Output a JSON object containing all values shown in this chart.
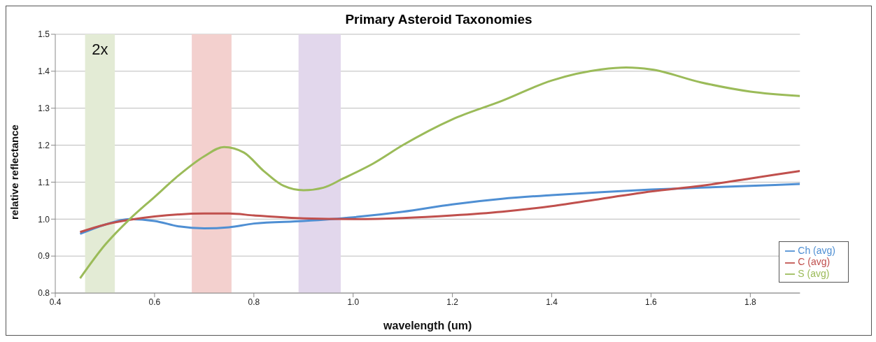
{
  "chart_data": {
    "type": "line",
    "title": "Primary Asteroid Taxonomies",
    "xlabel": "wavelength (um)",
    "ylabel": "relative reflectance",
    "xlim": [
      0.4,
      1.9
    ],
    "xticks": [
      {
        "value": 0.4,
        "label": "0.4"
      },
      {
        "value": 0.6,
        "label": "0.6"
      },
      {
        "value": 0.8,
        "label": "0.8"
      },
      {
        "value": 1.0,
        "label": "1.0"
      },
      {
        "value": 1.2,
        "label": "1.2"
      },
      {
        "value": 1.4,
        "label": "1.4"
      },
      {
        "value": 1.6,
        "label": "1.6"
      },
      {
        "value": 1.8,
        "label": "1.8"
      }
    ],
    "ylim": [
      0.8,
      1.5
    ],
    "yticks": [
      {
        "value": 0.8,
        "label": "0.8"
      },
      {
        "value": 0.9,
        "label": "0.9"
      },
      {
        "value": 1.0,
        "label": "1.0"
      },
      {
        "value": 1.1,
        "label": "1.1"
      },
      {
        "value": 1.2,
        "label": "1.2"
      },
      {
        "value": 1.3,
        "label": "1.3"
      },
      {
        "value": 1.4,
        "label": "1.4"
      },
      {
        "value": 1.5,
        "label": "1.5"
      }
    ],
    "grid": "y",
    "legend": "bottom right",
    "marker": "none",
    "line_style": "solid",
    "bands": [
      {
        "axis": "x",
        "from": 0.46,
        "to": 0.52,
        "label": "2x",
        "color": "#e3ebd5"
      },
      {
        "axis": "x",
        "from": 0.675,
        "to": 0.755,
        "color": "#f3d0ce"
      },
      {
        "axis": "x",
        "from": 0.89,
        "to": 0.975,
        "color": "#e2d7ec"
      }
    ],
    "series": [
      {
        "name": "Ch (avg)",
        "color": "#4f8fd3",
        "x": [
          0.45,
          0.5,
          0.55,
          0.6,
          0.65,
          0.7,
          0.75,
          0.8,
          0.9,
          1.0,
          1.1,
          1.2,
          1.3,
          1.4,
          1.5,
          1.6,
          1.7,
          1.8,
          1.9
        ],
        "values": [
          0.96,
          0.985,
          1.0,
          0.995,
          0.98,
          0.975,
          0.978,
          0.988,
          0.995,
          1.005,
          1.02,
          1.04,
          1.055,
          1.065,
          1.073,
          1.08,
          1.085,
          1.09,
          1.095
        ]
      },
      {
        "name": "C (avg)",
        "color": "#c0504d",
        "x": [
          0.45,
          0.5,
          0.55,
          0.6,
          0.7,
          0.75,
          0.8,
          0.9,
          1.0,
          1.1,
          1.2,
          1.3,
          1.4,
          1.5,
          1.6,
          1.7,
          1.8,
          1.9
        ],
        "values": [
          0.965,
          0.985,
          0.998,
          1.007,
          1.015,
          1.015,
          1.01,
          1.002,
          1.0,
          1.003,
          1.01,
          1.02,
          1.035,
          1.055,
          1.075,
          1.09,
          1.11,
          1.13
        ]
      },
      {
        "name": "S (avg)",
        "color": "#9bbb59",
        "x": [
          0.45,
          0.5,
          0.55,
          0.6,
          0.65,
          0.7,
          0.74,
          0.78,
          0.82,
          0.86,
          0.9,
          0.94,
          0.98,
          1.04,
          1.1,
          1.2,
          1.3,
          1.4,
          1.5,
          1.55,
          1.6,
          1.7,
          1.8,
          1.9
        ],
        "values": [
          0.84,
          0.93,
          1.0,
          1.06,
          1.12,
          1.17,
          1.195,
          1.18,
          1.13,
          1.09,
          1.078,
          1.085,
          1.11,
          1.15,
          1.2,
          1.27,
          1.32,
          1.375,
          1.405,
          1.41,
          1.405,
          1.37,
          1.345,
          1.333
        ]
      }
    ]
  }
}
